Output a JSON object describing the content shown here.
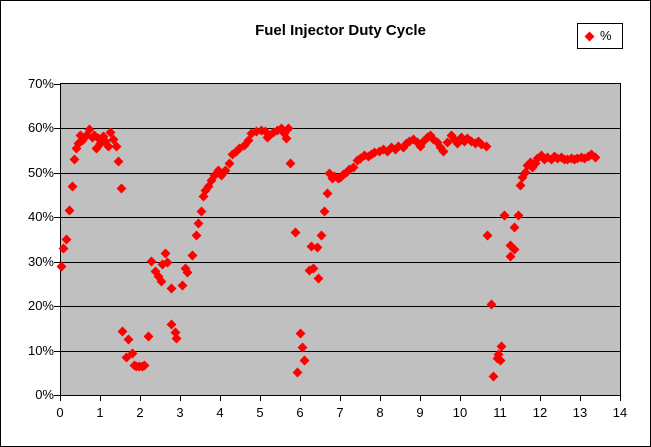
{
  "chart": {
    "title": "Fuel Injector Duty Cycle",
    "legend": {
      "label": "%",
      "marker_color": "#FF0000"
    }
  },
  "chart_data": {
    "type": "scatter",
    "title": "Fuel Injector Duty Cycle",
    "xlabel": "",
    "ylabel": "",
    "xlim": [
      0,
      14
    ],
    "ylim": [
      0,
      70
    ],
    "x_tick_labels": [
      "0",
      "1",
      "2",
      "3",
      "4",
      "5",
      "6",
      "7",
      "8",
      "9",
      "10",
      "11",
      "12",
      "13",
      "14"
    ],
    "y_tick_labels": [
      "0%",
      "10%",
      "20%",
      "30%",
      "40%",
      "50%",
      "60%",
      "70%"
    ],
    "grid": "horizontal",
    "plot_bg": "#C0C0C0",
    "grid_color": "#000000",
    "legend_position": "top-right",
    "series": [
      {
        "name": "%",
        "marker": "diamond",
        "color": "#FF0000",
        "points": [
          [
            0.01,
            29
          ],
          [
            0.07,
            33
          ],
          [
            0.15,
            35
          ],
          [
            0.22,
            41.5
          ],
          [
            0.28,
            47
          ],
          [
            0.34,
            53
          ],
          [
            0.38,
            55.5
          ],
          [
            0.44,
            56.5
          ],
          [
            0.5,
            58.5
          ],
          [
            0.55,
            57.3
          ],
          [
            0.63,
            58.3
          ],
          [
            0.72,
            59.7
          ],
          [
            0.78,
            58.0
          ],
          [
            0.84,
            58.3
          ],
          [
            0.9,
            55.5
          ],
          [
            0.95,
            57.7
          ],
          [
            1.0,
            56.5
          ],
          [
            1.06,
            58.2
          ],
          [
            1.12,
            57.0
          ],
          [
            1.18,
            56.0
          ],
          [
            1.24,
            59.0
          ],
          [
            1.31,
            57.4
          ],
          [
            1.38,
            55.9
          ],
          [
            1.45,
            52.6
          ],
          [
            1.52,
            46.5
          ],
          [
            1.55,
            14.2
          ],
          [
            1.65,
            8.5
          ],
          [
            1.68,
            12.5
          ],
          [
            1.78,
            9.4
          ],
          [
            1.83,
            6.7
          ],
          [
            1.89,
            6.4
          ],
          [
            1.96,
            6.4
          ],
          [
            2.03,
            6.5
          ],
          [
            2.09,
            6.7
          ],
          [
            2.2,
            13.1
          ],
          [
            2.26,
            30.0
          ],
          [
            2.36,
            27.7
          ],
          [
            2.44,
            26.7
          ],
          [
            2.51,
            25.5
          ],
          [
            2.55,
            29.4
          ],
          [
            2.61,
            31.9
          ],
          [
            2.66,
            29.8
          ],
          [
            2.76,
            24.0
          ],
          [
            2.77,
            15.8
          ],
          [
            2.86,
            14.0
          ],
          [
            2.9,
            12.8
          ],
          [
            3.04,
            24.7
          ],
          [
            3.11,
            28.4
          ],
          [
            3.18,
            27.6
          ],
          [
            3.29,
            31.4
          ],
          [
            3.4,
            36.0
          ],
          [
            3.45,
            38.5
          ],
          [
            3.51,
            41.4
          ],
          [
            3.57,
            44.6
          ],
          [
            3.62,
            46.1
          ],
          [
            3.69,
            47.0
          ],
          [
            3.76,
            48.3
          ],
          [
            3.84,
            49.4
          ],
          [
            3.94,
            50.6
          ],
          [
            4.03,
            49.4
          ],
          [
            4.11,
            50.6
          ],
          [
            4.21,
            52.1
          ],
          [
            4.29,
            54.2
          ],
          [
            4.4,
            54.7
          ],
          [
            4.48,
            55.4
          ],
          [
            4.59,
            56.2
          ],
          [
            4.69,
            57.3
          ],
          [
            4.78,
            58.8
          ],
          [
            4.9,
            59.2
          ],
          [
            5.01,
            59.6
          ],
          [
            5.11,
            59.2
          ],
          [
            5.18,
            57.9
          ],
          [
            5.23,
            58.4
          ],
          [
            5.32,
            59.0
          ],
          [
            5.43,
            59.6
          ],
          [
            5.53,
            60.0
          ],
          [
            5.61,
            58.8
          ],
          [
            5.66,
            57.7
          ],
          [
            5.7,
            59.9
          ],
          [
            5.75,
            52.2
          ],
          [
            5.88,
            36.5
          ],
          [
            5.93,
            5.0
          ],
          [
            6.0,
            13.9
          ],
          [
            6.06,
            10.8
          ],
          [
            6.11,
            7.8
          ],
          [
            6.23,
            28.1
          ],
          [
            6.28,
            33.4
          ],
          [
            6.33,
            28.4
          ],
          [
            6.42,
            33.1
          ],
          [
            6.44,
            26.2
          ],
          [
            6.52,
            36.0
          ],
          [
            6.61,
            41.3
          ],
          [
            6.68,
            45.4
          ],
          [
            6.73,
            49.8
          ],
          [
            6.79,
            48.8
          ],
          [
            6.86,
            49.2
          ],
          [
            6.94,
            48.7
          ],
          [
            7.01,
            49.0
          ],
          [
            7.07,
            49.6
          ],
          [
            7.15,
            50.1
          ],
          [
            7.23,
            50.7
          ],
          [
            7.32,
            51.2
          ],
          [
            7.43,
            52.7
          ],
          [
            7.51,
            53.3
          ],
          [
            7.61,
            53.8
          ],
          [
            7.69,
            53.6
          ],
          [
            7.78,
            54.2
          ],
          [
            7.86,
            54.6
          ],
          [
            7.97,
            54.9
          ],
          [
            8.07,
            55.3
          ],
          [
            8.18,
            54.9
          ],
          [
            8.28,
            55.7
          ],
          [
            8.38,
            55.3
          ],
          [
            8.46,
            56.0
          ],
          [
            8.57,
            55.8
          ],
          [
            8.65,
            56.5
          ],
          [
            8.73,
            57.1
          ],
          [
            8.84,
            57.5
          ],
          [
            8.93,
            56.8
          ],
          [
            9.01,
            56.0
          ],
          [
            9.09,
            57.1
          ],
          [
            9.18,
            57.9
          ],
          [
            9.26,
            58.5
          ],
          [
            9.34,
            57.5
          ],
          [
            9.43,
            56.8
          ],
          [
            9.51,
            55.7
          ],
          [
            9.57,
            54.8
          ],
          [
            9.69,
            56.8
          ],
          [
            9.79,
            58.5
          ],
          [
            9.86,
            57.5
          ],
          [
            9.94,
            56.6
          ],
          [
            10.03,
            57.9
          ],
          [
            10.11,
            57.1
          ],
          [
            10.19,
            57.7
          ],
          [
            10.29,
            57.1
          ],
          [
            10.38,
            56.6
          ],
          [
            10.46,
            57.0
          ],
          [
            10.54,
            56.4
          ],
          [
            10.65,
            56.0
          ],
          [
            10.68,
            36.0
          ],
          [
            10.78,
            20.3
          ],
          [
            10.82,
            4.2
          ],
          [
            10.93,
            8.2
          ],
          [
            10.96,
            9.2
          ],
          [
            11.0,
            7.7
          ],
          [
            11.04,
            10.9
          ],
          [
            11.1,
            40.5
          ],
          [
            11.25,
            33.6
          ],
          [
            11.26,
            31.2
          ],
          [
            11.35,
            32.8
          ],
          [
            11.37,
            37.8
          ],
          [
            11.46,
            40.5
          ],
          [
            11.51,
            47.2
          ],
          [
            11.57,
            48.9
          ],
          [
            11.63,
            50.0
          ],
          [
            11.69,
            51.6
          ],
          [
            11.76,
            52.4
          ],
          [
            11.82,
            51.3
          ],
          [
            11.88,
            52.2
          ],
          [
            11.94,
            53.3
          ],
          [
            12.03,
            53.8
          ],
          [
            12.11,
            53.1
          ],
          [
            12.19,
            53.5
          ],
          [
            12.28,
            53.1
          ],
          [
            12.36,
            53.7
          ],
          [
            12.44,
            53.3
          ],
          [
            12.53,
            53.5
          ],
          [
            12.61,
            53.1
          ],
          [
            12.69,
            53.0
          ],
          [
            12.78,
            53.3
          ],
          [
            12.86,
            52.9
          ],
          [
            12.94,
            53.3
          ],
          [
            13.03,
            53.4
          ],
          [
            13.12,
            53.2
          ],
          [
            13.2,
            53.6
          ],
          [
            13.28,
            54.1
          ],
          [
            13.38,
            53.5
          ]
        ]
      }
    ]
  }
}
